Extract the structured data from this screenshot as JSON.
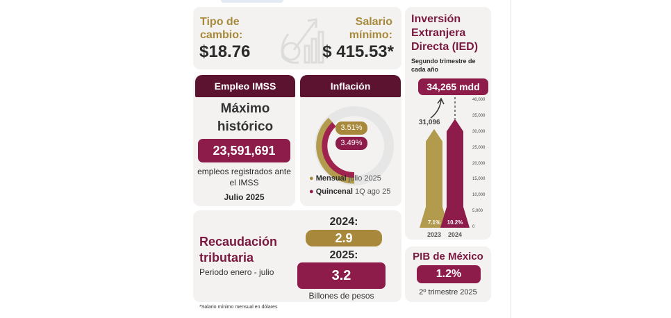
{
  "exchange": {
    "label": "Tipo de cambio:",
    "value": "$18.76"
  },
  "min_wage": {
    "label": "Salario mínimo:",
    "value": "$ 415.53*"
  },
  "ied": {
    "title": "Inversión Extranjera Directa (IED)",
    "subtitle": "Segundo trimestre de cada año",
    "badge": "34,265 mdd",
    "colors": {
      "2023": "#b39b4e",
      "2024": "#8d1c4b"
    }
  },
  "chart_data": {
    "type": "bar",
    "title": "Inversión Extranjera Directa (IED)",
    "categories": [
      "2023",
      "2024"
    ],
    "values": [
      31096,
      34265
    ],
    "value_labels": [
      "31,096",
      "34,265 mdd"
    ],
    "growth_labels": [
      "7.1%",
      "10.2%"
    ],
    "ylim": [
      0,
      40000
    ],
    "yticks": [
      "0",
      "5,000",
      "10,000",
      "15,000",
      "20,000",
      "25,000",
      "30,000",
      "35,000",
      "40,000"
    ]
  },
  "employment": {
    "header": "Empleo IMSS",
    "headline": "Máximo histórico",
    "value": "23,591,691",
    "desc": "empleos registrados ante el IMSS",
    "date": "Julio 2025"
  },
  "inflation": {
    "header": "Inflación",
    "monthly_value": "3.51%",
    "biweekly_value": "3.49%",
    "legend": [
      {
        "bold": "Mensual",
        "text": " julio 2025"
      },
      {
        "bold": "Quincenal",
        "text": " 1Q ago 25"
      }
    ]
  },
  "revenue": {
    "title": "Recaudación tributaria",
    "period": "Periodo enero - julio",
    "y2024_label": "2024:",
    "y2024_value": "2.9",
    "y2025_label": "2025:",
    "y2025_value": "3.2",
    "unit": "Billones de pesos"
  },
  "gdp": {
    "title": "PIB de México",
    "value": "1.2%",
    "period": "2º trimestre 2025"
  },
  "footnote": "*Salario mínimo mensual en dólares"
}
